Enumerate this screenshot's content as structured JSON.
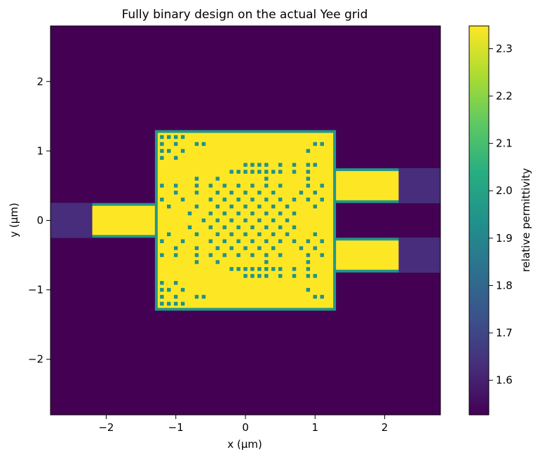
{
  "chart_data": {
    "type": "heatmap",
    "title": "Fully binary design on the actual Yee grid",
    "xlabel": "x (μm)",
    "ylabel": "y (μm)",
    "xlim": [
      -2.8,
      2.8
    ],
    "ylim": [
      -2.8,
      2.8
    ],
    "x_ticks": [
      -2,
      -1,
      0,
      1,
      2
    ],
    "y_ticks": [
      -2,
      -1,
      0,
      1,
      2
    ],
    "x_tick_labels": [
      "−2",
      "−1",
      "0",
      "1",
      "2"
    ],
    "y_tick_labels": [
      "−2",
      "−1",
      "0",
      "1",
      "2"
    ],
    "colormap": "viridis",
    "colorbar": {
      "label": "relative permittivity",
      "range": [
        1.527,
        2.348
      ],
      "ticks": [
        1.6,
        1.7,
        1.8,
        1.9,
        2.0,
        2.1,
        2.2,
        2.3
      ],
      "tick_labels": [
        "1.6",
        "1.7",
        "1.8",
        "1.9",
        "2.0",
        "2.1",
        "2.2",
        "2.3"
      ]
    },
    "background_permittivity": 1.527,
    "core_permittivity": 2.348,
    "pml_permittivity": 1.63,
    "design_region": {
      "x": [
        -1.3,
        1.3
      ],
      "y": [
        -1.3,
        1.3
      ],
      "filled_permittivity": 2.348,
      "pattern_cell_size_um": 0.1,
      "hole_permittivity": 1.94,
      "holes": [
        [
          -1.2,
          1.2
        ],
        [
          -1.1,
          1.2
        ],
        [
          -1.0,
          1.2
        ],
        [
          -0.9,
          1.2
        ],
        [
          -1.2,
          1.1
        ],
        [
          -1.0,
          1.1
        ],
        [
          -0.7,
          1.1
        ],
        [
          -0.6,
          1.1
        ],
        [
          -1.2,
          1.0
        ],
        [
          -1.1,
          1.0
        ],
        [
          -0.9,
          1.0
        ],
        [
          -1.2,
          0.9
        ],
        [
          -1.0,
          0.9
        ],
        [
          1.0,
          1.1
        ],
        [
          1.1,
          1.1
        ],
        [
          0.9,
          1.0
        ],
        [
          0.0,
          0.8
        ],
        [
          0.1,
          0.8
        ],
        [
          0.2,
          0.8
        ],
        [
          0.3,
          0.8
        ],
        [
          0.5,
          0.8
        ],
        [
          0.7,
          0.8
        ],
        [
          0.9,
          0.8
        ],
        [
          1.0,
          0.8
        ],
        [
          -0.2,
          0.7
        ],
        [
          -0.1,
          0.7
        ],
        [
          0.0,
          0.7
        ],
        [
          0.1,
          0.7
        ],
        [
          0.2,
          0.7
        ],
        [
          0.3,
          0.7
        ],
        [
          0.4,
          0.7
        ],
        [
          0.5,
          0.7
        ],
        [
          0.7,
          0.7
        ],
        [
          0.9,
          0.7
        ],
        [
          -0.7,
          0.6
        ],
        [
          -0.4,
          0.6
        ],
        [
          0.3,
          0.6
        ],
        [
          0.9,
          0.6
        ],
        [
          -1.2,
          0.5
        ],
        [
          -1.0,
          0.5
        ],
        [
          -0.7,
          0.5
        ],
        [
          -0.5,
          0.5
        ],
        [
          -0.3,
          0.5
        ],
        [
          -0.1,
          0.5
        ],
        [
          0.1,
          0.5
        ],
        [
          0.3,
          0.5
        ],
        [
          0.5,
          0.5
        ],
        [
          0.9,
          0.5
        ],
        [
          1.1,
          0.5
        ],
        [
          -1.0,
          0.4
        ],
        [
          -0.7,
          0.4
        ],
        [
          -0.4,
          0.4
        ],
        [
          -0.2,
          0.4
        ],
        [
          0.0,
          0.4
        ],
        [
          0.2,
          0.4
        ],
        [
          0.4,
          0.4
        ],
        [
          0.8,
          0.4
        ],
        [
          1.0,
          0.4
        ],
        [
          -1.2,
          0.3
        ],
        [
          -0.9,
          0.3
        ],
        [
          -0.5,
          0.3
        ],
        [
          -0.3,
          0.3
        ],
        [
          -0.1,
          0.3
        ],
        [
          0.1,
          0.3
        ],
        [
          0.3,
          0.3
        ],
        [
          0.5,
          0.3
        ],
        [
          0.7,
          0.3
        ],
        [
          0.9,
          0.3
        ],
        [
          1.1,
          0.3
        ],
        [
          -1.1,
          0.2
        ],
        [
          -0.7,
          0.2
        ],
        [
          -0.4,
          0.2
        ],
        [
          -0.2,
          0.2
        ],
        [
          0.0,
          0.2
        ],
        [
          0.2,
          0.2
        ],
        [
          0.4,
          0.2
        ],
        [
          0.6,
          0.2
        ],
        [
          1.0,
          0.2
        ],
        [
          -0.8,
          0.1
        ],
        [
          -0.5,
          0.1
        ],
        [
          -0.3,
          0.1
        ],
        [
          -0.1,
          0.1
        ],
        [
          0.1,
          0.1
        ],
        [
          0.3,
          0.1
        ],
        [
          0.5,
          0.1
        ],
        [
          0.7,
          0.1
        ],
        [
          -0.6,
          0.0
        ],
        [
          -0.4,
          0.0
        ],
        [
          -0.2,
          0.0
        ],
        [
          0.0,
          0.0
        ],
        [
          0.2,
          0.0
        ],
        [
          0.4,
          0.0
        ],
        [
          0.6,
          0.0
        ],
        [
          -0.8,
          -0.1
        ],
        [
          -0.5,
          -0.1
        ],
        [
          -0.3,
          -0.1
        ],
        [
          -0.1,
          -0.1
        ],
        [
          0.1,
          -0.1
        ],
        [
          0.3,
          -0.1
        ],
        [
          0.5,
          -0.1
        ],
        [
          0.7,
          -0.1
        ],
        [
          -1.1,
          -0.2
        ],
        [
          -0.7,
          -0.2
        ],
        [
          -0.4,
          -0.2
        ],
        [
          -0.2,
          -0.2
        ],
        [
          0.0,
          -0.2
        ],
        [
          0.2,
          -0.2
        ],
        [
          0.4,
          -0.2
        ],
        [
          0.6,
          -0.2
        ],
        [
          1.0,
          -0.2
        ],
        [
          -1.2,
          -0.3
        ],
        [
          -0.9,
          -0.3
        ],
        [
          -0.5,
          -0.3
        ],
        [
          -0.3,
          -0.3
        ],
        [
          -0.1,
          -0.3
        ],
        [
          0.1,
          -0.3
        ],
        [
          0.3,
          -0.3
        ],
        [
          0.5,
          -0.3
        ],
        [
          0.7,
          -0.3
        ],
        [
          0.9,
          -0.3
        ],
        [
          1.1,
          -0.3
        ],
        [
          -1.0,
          -0.4
        ],
        [
          -0.7,
          -0.4
        ],
        [
          -0.4,
          -0.4
        ],
        [
          -0.2,
          -0.4
        ],
        [
          0.0,
          -0.4
        ],
        [
          0.2,
          -0.4
        ],
        [
          0.4,
          -0.4
        ],
        [
          0.8,
          -0.4
        ],
        [
          1.0,
          -0.4
        ],
        [
          -1.2,
          -0.5
        ],
        [
          -1.0,
          -0.5
        ],
        [
          -0.7,
          -0.5
        ],
        [
          -0.5,
          -0.5
        ],
        [
          -0.3,
          -0.5
        ],
        [
          -0.1,
          -0.5
        ],
        [
          0.1,
          -0.5
        ],
        [
          0.3,
          -0.5
        ],
        [
          0.5,
          -0.5
        ],
        [
          0.9,
          -0.5
        ],
        [
          1.1,
          -0.5
        ],
        [
          -0.7,
          -0.6
        ],
        [
          -0.4,
          -0.6
        ],
        [
          0.3,
          -0.6
        ],
        [
          0.9,
          -0.6
        ],
        [
          -0.2,
          -0.7
        ],
        [
          -0.1,
          -0.7
        ],
        [
          0.0,
          -0.7
        ],
        [
          0.1,
          -0.7
        ],
        [
          0.2,
          -0.7
        ],
        [
          0.3,
          -0.7
        ],
        [
          0.4,
          -0.7
        ],
        [
          0.5,
          -0.7
        ],
        [
          0.7,
          -0.7
        ],
        [
          0.9,
          -0.7
        ],
        [
          0.0,
          -0.8
        ],
        [
          0.1,
          -0.8
        ],
        [
          0.2,
          -0.8
        ],
        [
          0.3,
          -0.8
        ],
        [
          0.5,
          -0.8
        ],
        [
          0.7,
          -0.8
        ],
        [
          0.9,
          -0.8
        ],
        [
          1.0,
          -0.8
        ],
        [
          -1.2,
          -0.9
        ],
        [
          -1.0,
          -0.9
        ],
        [
          0.9,
          -1.0
        ],
        [
          -1.2,
          -1.0
        ],
        [
          -1.1,
          -1.0
        ],
        [
          -0.9,
          -1.0
        ],
        [
          -1.2,
          -1.1
        ],
        [
          -1.0,
          -1.1
        ],
        [
          -0.7,
          -1.1
        ],
        [
          -0.6,
          -1.1
        ],
        [
          1.0,
          -1.1
        ],
        [
          1.1,
          -1.1
        ],
        [
          -1.2,
          -1.2
        ],
        [
          -1.1,
          -1.2
        ],
        [
          -1.0,
          -1.2
        ],
        [
          -0.9,
          -1.2
        ]
      ]
    },
    "waveguides": [
      {
        "name": "input",
        "x": [
          -2.8,
          -1.3
        ],
        "y": [
          -0.25,
          0.25
        ],
        "pml_x": [
          -2.8,
          -2.2
        ]
      },
      {
        "name": "output_top",
        "x": [
          1.3,
          2.8
        ],
        "y": [
          0.25,
          0.75
        ],
        "pml_x": [
          2.2,
          2.8
        ]
      },
      {
        "name": "output_bottom",
        "x": [
          1.3,
          2.8
        ],
        "y": [
          -0.75,
          -0.25
        ],
        "pml_x": [
          2.2,
          2.8
        ]
      }
    ]
  }
}
